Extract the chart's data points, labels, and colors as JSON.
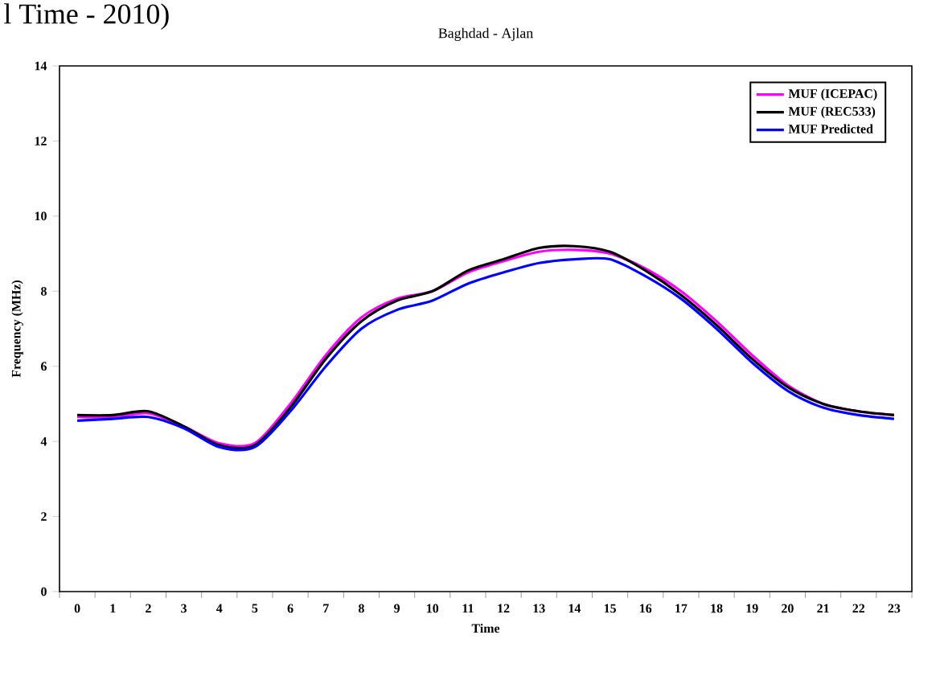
{
  "chart_data": {
    "type": "line",
    "title": "Baghdad - Ajlan",
    "xlabel": "Time",
    "ylabel": "Frequency (MHz)",
    "annotations": [
      "l Time - 2010)"
    ],
    "categories": [
      "0",
      "1",
      "2",
      "3",
      "4",
      "5",
      "6",
      "7",
      "8",
      "9",
      "10",
      "11",
      "12",
      "13",
      "14",
      "15",
      "16",
      "17",
      "18",
      "19",
      "20",
      "21",
      "22",
      "23"
    ],
    "series": [
      {
        "name": "MUF (ICEPAC)",
        "color": "#ff00ff",
        "values": [
          4.65,
          4.65,
          4.75,
          4.4,
          3.95,
          3.95,
          5.0,
          6.3,
          7.3,
          7.8,
          8.0,
          8.5,
          8.8,
          9.05,
          9.1,
          9.0,
          8.6,
          8.0,
          7.2,
          6.3,
          5.5,
          5.0,
          4.8,
          4.7
        ]
      },
      {
        "name": "MUF (REC533)",
        "color": "#000000",
        "values": [
          4.7,
          4.7,
          4.8,
          4.4,
          3.9,
          3.9,
          4.9,
          6.2,
          7.2,
          7.75,
          8.0,
          8.55,
          8.85,
          9.15,
          9.2,
          9.05,
          8.55,
          7.9,
          7.1,
          6.2,
          5.45,
          5.0,
          4.8,
          4.7
        ]
      },
      {
        "name": "MUF Predicted",
        "color": "#0000ff",
        "values": [
          4.55,
          4.6,
          4.65,
          4.35,
          3.85,
          3.85,
          4.8,
          6.0,
          7.0,
          7.5,
          7.75,
          8.2,
          8.5,
          8.75,
          8.85,
          8.85,
          8.4,
          7.8,
          7.0,
          6.1,
          5.35,
          4.9,
          4.7,
          4.6
        ]
      }
    ],
    "ylim": [
      0,
      14
    ],
    "yticks": [
      0,
      2,
      4,
      6,
      8,
      10,
      12,
      14
    ],
    "grid": false,
    "legend": "top right",
    "marker": "none",
    "line_style": "solid"
  }
}
